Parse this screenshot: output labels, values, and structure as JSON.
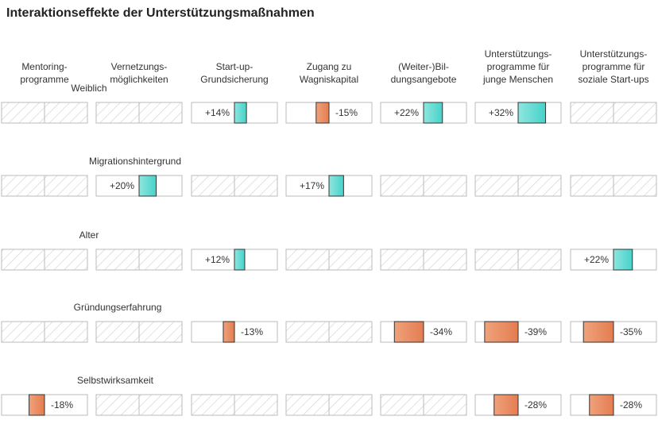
{
  "chart_data": {
    "type": "bar",
    "title": "Interaktionseffekte der Unterstützungsmaßnahmen",
    "columns": [
      [
        "Mentoring-",
        "programme"
      ],
      [
        "Vernetzungs-",
        "möglichkeiten"
      ],
      [
        "Start-up-",
        "Grundsicherung"
      ],
      [
        "Zugang zu",
        "Wagniskapital"
      ],
      [
        "(Weiter-)Bil-",
        "dungsangebote"
      ],
      [
        "Unterstützungs-",
        "programme für",
        "junge Menschen"
      ],
      [
        "Unterstützungs-",
        "programme für",
        "soziale Start-ups"
      ]
    ],
    "rows": [
      "Weiblich",
      "Migrationshintergrund",
      "Alter",
      "Gründungserfahrung",
      "Selbstwirksamkeit"
    ],
    "values": [
      [
        null,
        null,
        14,
        -15,
        22,
        32,
        null
      ],
      [
        null,
        20,
        null,
        17,
        null,
        null,
        null
      ],
      [
        null,
        null,
        12,
        null,
        null,
        null,
        22
      ],
      [
        null,
        null,
        -13,
        null,
        -34,
        -39,
        -35
      ],
      [
        -18,
        null,
        null,
        null,
        null,
        -28,
        -28
      ]
    ],
    "xlim": [
      -50,
      50
    ],
    "colors": {
      "positive": "#4fd8d0",
      "negative": "#e8875c",
      "empty_hatch": "#cfcfcf",
      "cell_border": "#bbbbbb",
      "bar_border": "#333333"
    }
  }
}
